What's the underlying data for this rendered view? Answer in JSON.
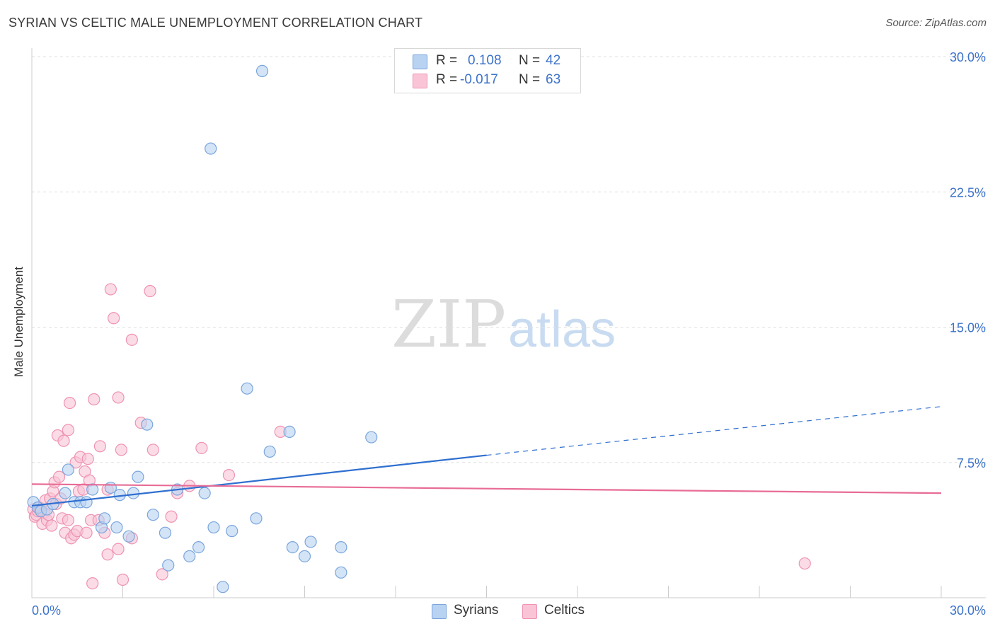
{
  "title": "SYRIAN VS CELTIC MALE UNEMPLOYMENT CORRELATION CHART",
  "source": "Source: ZipAtlas.com",
  "watermark": {
    "zip": "ZIP",
    "atlas": "atlas"
  },
  "legend": {
    "rows": [
      {
        "r_label": "R =",
        "r_value": "0.108",
        "n_label": "N =",
        "n_value": "42"
      },
      {
        "r_label": "R =",
        "r_value": "-0.017",
        "n_label": "N =",
        "n_value": "63"
      }
    ]
  },
  "colors": {
    "syrians_fill": "#b8d2f2",
    "syrians_stroke": "#7aa5dc",
    "syrians_line": "#2f6fcf",
    "celtics_fill": "#f9c5d6",
    "celtics_stroke": "#ef93b2",
    "celtics_line": "#e86c96",
    "grid": "#e0e0e0",
    "tick_label": "#3d73c9"
  },
  "chart_data": {
    "type": "scatter",
    "title": "SYRIAN VS CELTIC MALE UNEMPLOYMENT CORRELATION CHART",
    "xlabel": "",
    "ylabel": "Male Unemployment",
    "xlim": [
      0,
      30
    ],
    "ylim": [
      0,
      30
    ],
    "x_tick_labels": [
      "0.0%",
      "30.0%"
    ],
    "y_ticks": [
      7.5,
      15.0,
      22.5,
      30.0
    ],
    "y_tick_labels": [
      "7.5%",
      "15.0%",
      "22.5%",
      "30.0%"
    ],
    "grid": true,
    "legend_position": "bottom",
    "series": [
      {
        "name": "Syrians",
        "r": 0.108,
        "n": 42,
        "trend": {
          "x0": 0,
          "y0": 5.1,
          "x1": 15,
          "y1": 7.9,
          "dashed_to": 30,
          "dashed_y1": 10.6
        },
        "points": [
          [
            0.05,
            5.3
          ],
          [
            0.2,
            5.0
          ],
          [
            0.3,
            4.8
          ],
          [
            0.5,
            4.9
          ],
          [
            0.7,
            5.2
          ],
          [
            1.1,
            5.8
          ],
          [
            1.2,
            7.1
          ],
          [
            1.4,
            5.3
          ],
          [
            1.6,
            5.3
          ],
          [
            1.8,
            5.3
          ],
          [
            2.0,
            6.0
          ],
          [
            2.3,
            3.9
          ],
          [
            2.4,
            4.4
          ],
          [
            2.6,
            6.1
          ],
          [
            2.8,
            3.9
          ],
          [
            2.9,
            5.7
          ],
          [
            3.2,
            3.4
          ],
          [
            3.35,
            5.8
          ],
          [
            3.5,
            6.7
          ],
          [
            3.8,
            9.6
          ],
          [
            4.0,
            4.6
          ],
          [
            4.4,
            3.6
          ],
          [
            4.5,
            1.8
          ],
          [
            4.8,
            6.0
          ],
          [
            5.2,
            2.3
          ],
          [
            5.5,
            2.8
          ],
          [
            5.7,
            5.8
          ],
          [
            5.9,
            24.9
          ],
          [
            6.0,
            3.9
          ],
          [
            6.3,
            0.6
          ],
          [
            6.6,
            3.7
          ],
          [
            7.1,
            11.6
          ],
          [
            7.4,
            4.4
          ],
          [
            7.6,
            29.2
          ],
          [
            7.85,
            8.1
          ],
          [
            8.5,
            9.2
          ],
          [
            8.6,
            2.8
          ],
          [
            9.0,
            2.3
          ],
          [
            9.2,
            3.1
          ],
          [
            10.2,
            1.4
          ],
          [
            10.2,
            2.8
          ],
          [
            11.2,
            8.9
          ]
        ]
      },
      {
        "name": "Celtics",
        "r": -0.017,
        "n": 63,
        "trend": {
          "x0": 0,
          "y0": 6.3,
          "x1": 30,
          "y1": 5.8
        },
        "points": [
          [
            0.05,
            4.9
          ],
          [
            0.1,
            4.5
          ],
          [
            0.15,
            4.6
          ],
          [
            0.2,
            4.8
          ],
          [
            0.25,
            5.0
          ],
          [
            0.3,
            4.9
          ],
          [
            0.35,
            4.1
          ],
          [
            0.4,
            4.7
          ],
          [
            0.45,
            5.4
          ],
          [
            0.5,
            4.3
          ],
          [
            0.6,
            5.5
          ],
          [
            0.65,
            4.0
          ],
          [
            0.7,
            5.9
          ],
          [
            0.75,
            6.4
          ],
          [
            0.8,
            5.2
          ],
          [
            0.85,
            9.0
          ],
          [
            0.9,
            6.7
          ],
          [
            1.0,
            4.4
          ],
          [
            1.05,
            8.7
          ],
          [
            1.1,
            3.6
          ],
          [
            1.2,
            4.3
          ],
          [
            1.2,
            9.3
          ],
          [
            1.25,
            10.8
          ],
          [
            1.3,
            3.3
          ],
          [
            1.4,
            3.5
          ],
          [
            1.45,
            7.5
          ],
          [
            1.5,
            3.7
          ],
          [
            1.55,
            5.9
          ],
          [
            1.6,
            7.8
          ],
          [
            1.7,
            6.0
          ],
          [
            1.75,
            7.0
          ],
          [
            1.8,
            3.6
          ],
          [
            1.85,
            7.7
          ],
          [
            1.9,
            6.5
          ],
          [
            1.95,
            4.3
          ],
          [
            2.0,
            0.8
          ],
          [
            2.05,
            11.0
          ],
          [
            2.2,
            4.3
          ],
          [
            2.25,
            8.4
          ],
          [
            2.4,
            3.6
          ],
          [
            2.5,
            2.4
          ],
          [
            2.5,
            6.0
          ],
          [
            2.6,
            17.1
          ],
          [
            2.7,
            15.5
          ],
          [
            2.85,
            2.7
          ],
          [
            2.85,
            11.1
          ],
          [
            2.95,
            8.2
          ],
          [
            3.0,
            1.0
          ],
          [
            3.3,
            14.3
          ],
          [
            3.3,
            3.3
          ],
          [
            3.6,
            9.7
          ],
          [
            3.9,
            17.0
          ],
          [
            4.0,
            8.2
          ],
          [
            4.3,
            1.3
          ],
          [
            4.6,
            4.5
          ],
          [
            4.8,
            5.8
          ],
          [
            5.2,
            6.2
          ],
          [
            5.6,
            8.3
          ],
          [
            6.5,
            6.8
          ],
          [
            8.2,
            9.2
          ],
          [
            25.5,
            1.9
          ],
          [
            0.55,
            4.6
          ],
          [
            0.95,
            5.5
          ]
        ]
      }
    ]
  },
  "bottom_legend": {
    "items": [
      {
        "label": "Syrians"
      },
      {
        "label": "Celtics"
      }
    ]
  }
}
